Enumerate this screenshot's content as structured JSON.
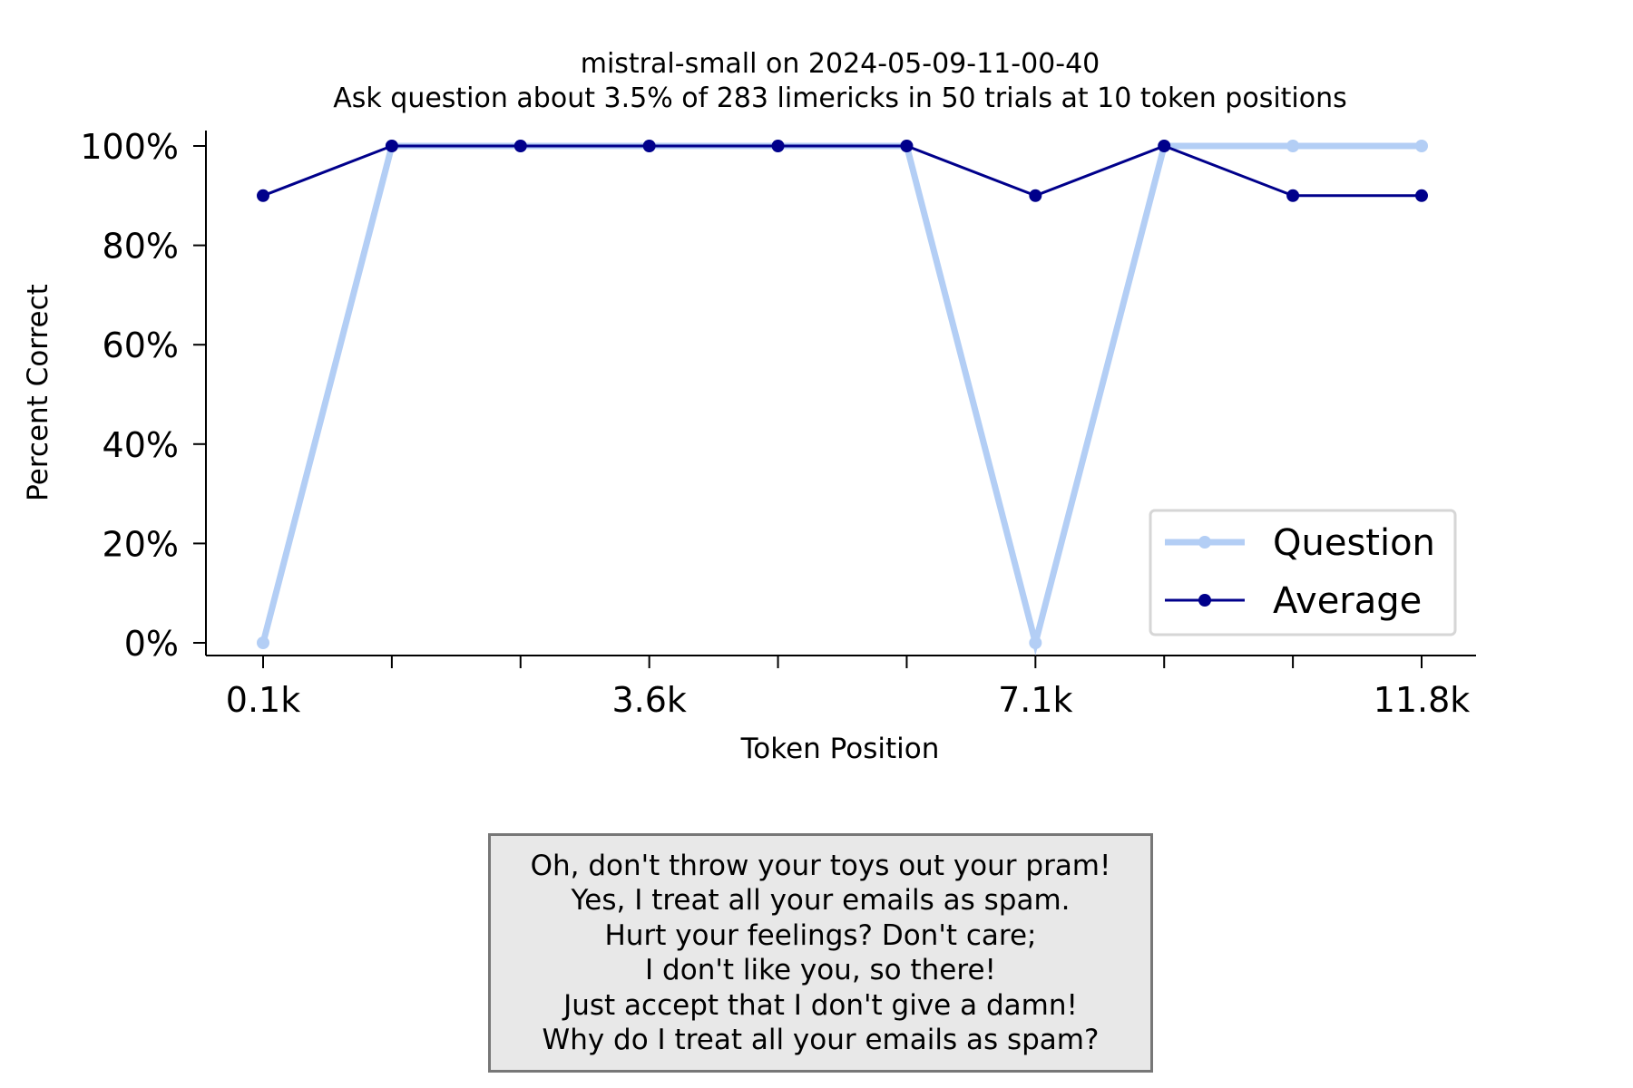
{
  "chart_data": {
    "type": "line",
    "title": "mistral-small on 2024-05-09-11-00-40",
    "subtitle": "Ask question about 3.5% of 283 limericks in 50 trials at 10 token positions",
    "xlabel": "Token Position",
    "ylabel": "Percent Correct",
    "x_ticks": [
      "0.1k",
      "",
      "",
      "3.6k",
      "",
      "",
      "7.1k",
      "",
      "",
      "11.8k"
    ],
    "y_ticks": [
      "0%",
      "20%",
      "40%",
      "60%",
      "80%",
      "100%"
    ],
    "ylim": [
      0,
      100
    ],
    "series": [
      {
        "name": "Question",
        "color": "#b3cef5",
        "values": [
          0,
          100,
          100,
          100,
          100,
          100,
          0,
          100,
          100,
          100
        ]
      },
      {
        "name": "Average",
        "color": "#00008b",
        "values": [
          90,
          100,
          100,
          100,
          100,
          100,
          90,
          100,
          90,
          90
        ]
      }
    ],
    "legend_position": "lower-right",
    "grid": false
  },
  "limerick": [
    "Oh, don't throw your toys out your pram!",
    "Yes, I treat all your emails as spam.",
    "Hurt your feelings? Don't care;",
    "I don't like you, so there!",
    "Just accept that I don't give a damn!",
    "Why do I treat all your emails as spam?"
  ]
}
